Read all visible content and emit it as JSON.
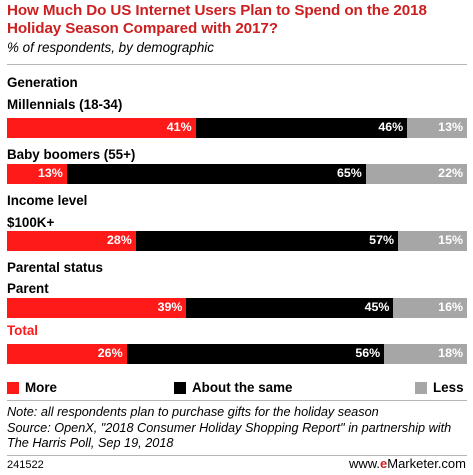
{
  "title": "How Much Do US Internet Users Plan to Spend on the 2018 Holiday Season Compared with 2017?",
  "subtitle": "% of respondents, by demographic",
  "groups": [
    {
      "label": "Generation"
    },
    {
      "label": "Income level"
    },
    {
      "label": "Parental status"
    }
  ],
  "legend": {
    "more": "More",
    "same": "About the same",
    "less": "Less"
  },
  "colors": {
    "more": "#ff1a1a",
    "same": "#000000",
    "less": "#a6a6a6",
    "title": "#cc1f1f"
  },
  "note": "Note: all respondents plan to purchase gifts for the holiday season",
  "source": "Source: OpenX, \"2018 Consumer Holiday Shopping Report\" in partnership with The Harris Poll, Sep 19, 2018",
  "footer": {
    "id": "241522",
    "brand_www": "www.",
    "brand_e": "e",
    "brand_rest": "Marketer.com"
  },
  "chart_data": {
    "type": "bar",
    "stacked": true,
    "orientation": "horizontal",
    "categories": [
      "Millennials (18-34)",
      "Baby boomers (55+)",
      "$100K+",
      "Parent",
      "Total"
    ],
    "series": [
      {
        "name": "More",
        "values": [
          41,
          13,
          28,
          39,
          26
        ]
      },
      {
        "name": "About the same",
        "values": [
          46,
          65,
          57,
          45,
          56
        ]
      },
      {
        "name": "Less",
        "values": [
          13,
          22,
          15,
          16,
          18
        ]
      }
    ],
    "legend_position": "bottom"
  }
}
